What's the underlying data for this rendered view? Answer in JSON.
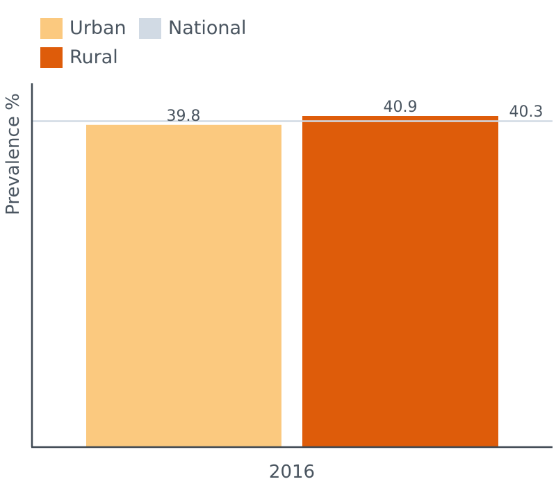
{
  "legend": {
    "items": [
      {
        "label": "Urban",
        "color": "#fbc97f"
      },
      {
        "label": "National",
        "color": "#d1dae4"
      },
      {
        "label": "Rural",
        "color": "#de5c0a"
      }
    ]
  },
  "chart_data": {
    "type": "bar",
    "title": "",
    "xlabel": "",
    "ylabel": "Prevalence %",
    "categories": [
      "2016"
    ],
    "series": [
      {
        "name": "Urban",
        "values": [
          39.8
        ],
        "color": "#fbc97f"
      },
      {
        "name": "Rural",
        "values": [
          40.9
        ],
        "color": "#de5c0a"
      }
    ],
    "reference_lines": [
      {
        "name": "National",
        "value": 40.3,
        "label": "40.3",
        "color": "#d1dae4"
      }
    ],
    "data_labels": [
      "39.8",
      "40.9"
    ],
    "ylim": [
      0,
      40.9
    ],
    "grid": false,
    "legend_position": "top-left"
  }
}
